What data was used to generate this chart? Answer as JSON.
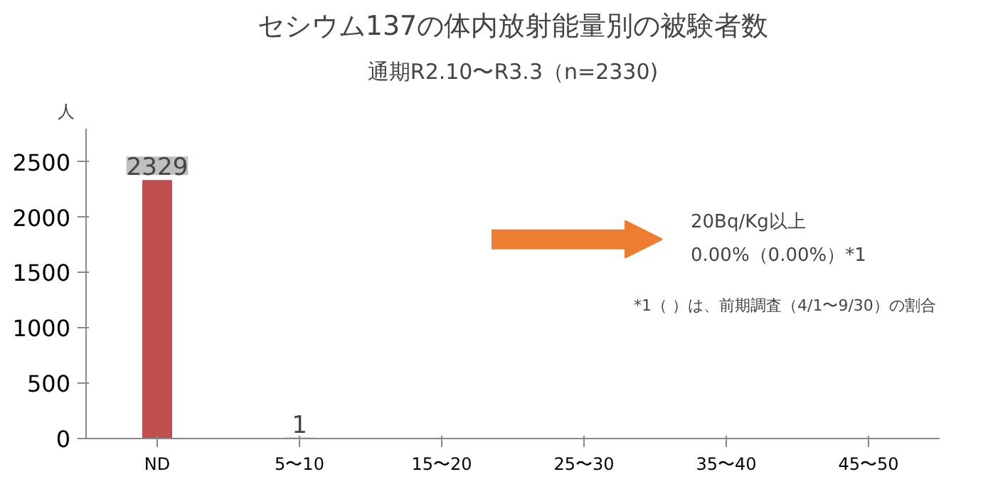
{
  "chart_data": {
    "type": "bar",
    "title": "セシウム137の体内放射能量別の被験者数",
    "subtitle": "通期R2.10〜R3.3（n=2330)",
    "ylabel": "人",
    "categories": [
      "ND",
      "5〜10",
      "15〜20",
      "25〜30",
      "35〜40",
      "45〜50"
    ],
    "values": [
      2329,
      1,
      0,
      0,
      0,
      0
    ],
    "color": "#c0504d",
    "value_labels": [
      "2329",
      "1",
      null,
      null,
      null,
      null
    ],
    "ylim": [
      0,
      2800
    ],
    "yticks": [
      0,
      500,
      1000,
      1500,
      2000,
      2500
    ],
    "grid": false,
    "annotations": [
      "20Bq/Kg以上",
      "0.00%（0.00%）*1",
      "*1（ ）は、前期調査（4/1〜9/30）の割合"
    ]
  }
}
